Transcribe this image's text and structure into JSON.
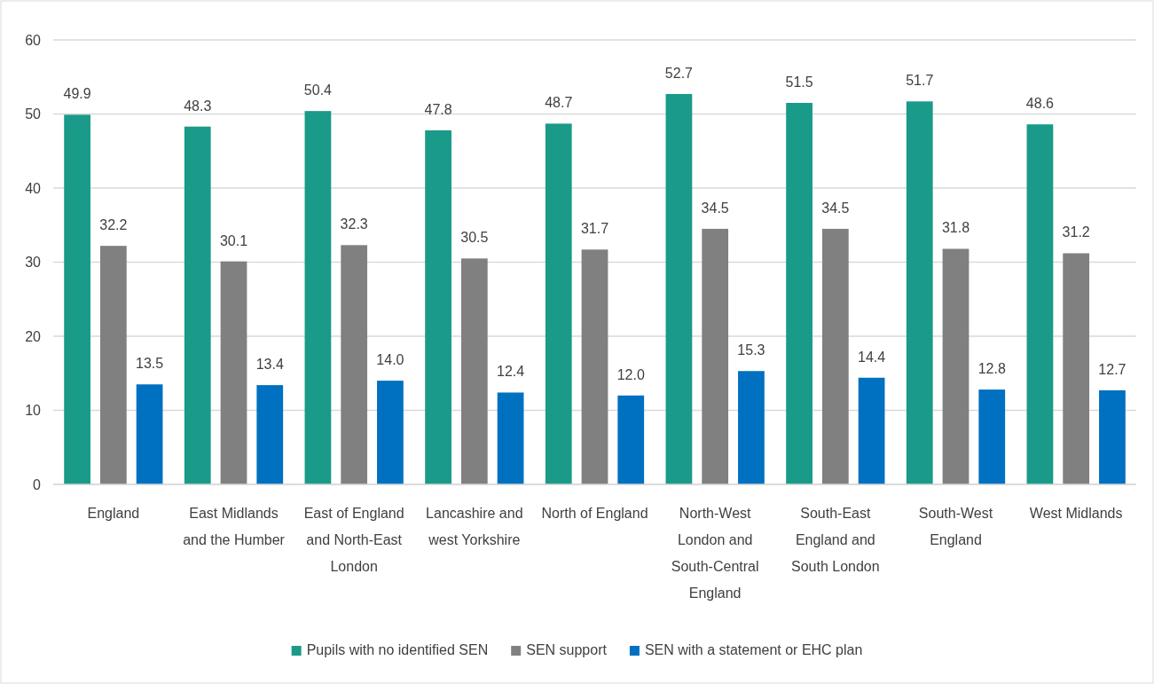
{
  "chart_data": {
    "type": "bar",
    "categories": [
      "England",
      "East Midlands and the Humber",
      "East of England and North-East London",
      "Lancashire and west Yorkshire",
      "North of England",
      "North-West London and South-Central England",
      "South-East England and South London",
      "South-West England",
      "West Midlands"
    ],
    "series": [
      {
        "name": "Pupils with no identified SEN",
        "color": "#1a9a88",
        "values": [
          49.9,
          48.3,
          50.4,
          47.8,
          48.7,
          52.7,
          51.5,
          51.7,
          48.6
        ],
        "value_labels": [
          "49.9",
          "48.3",
          "50.4",
          "47.8",
          "48.7",
          "52.7",
          "51.5",
          "51.7",
          "48.6"
        ]
      },
      {
        "name": "SEN support",
        "color": "#808080",
        "values": [
          32.2,
          30.1,
          32.3,
          30.5,
          31.7,
          34.5,
          34.5,
          31.8,
          31.2
        ],
        "value_labels": [
          "32.2",
          "30.1",
          "32.3",
          "30.5",
          "31.7",
          "34.5",
          "34.5",
          "31.8",
          "31.2"
        ]
      },
      {
        "name": "SEN with a statement or EHC plan",
        "color": "#0070c0",
        "values": [
          13.5,
          13.4,
          14,
          12.4,
          12,
          15.3,
          14.4,
          12.8,
          12.7
        ],
        "value_labels": [
          "13.5",
          "13.4",
          "14.0",
          "12.4",
          "12.0",
          "15.3",
          "14.4",
          "12.8",
          "12.7"
        ]
      }
    ],
    "ylim": [
      0,
      60
    ],
    "yticks": [
      0,
      10,
      20,
      30,
      40,
      50,
      60
    ],
    "grid": "y",
    "legend": "bottom"
  }
}
